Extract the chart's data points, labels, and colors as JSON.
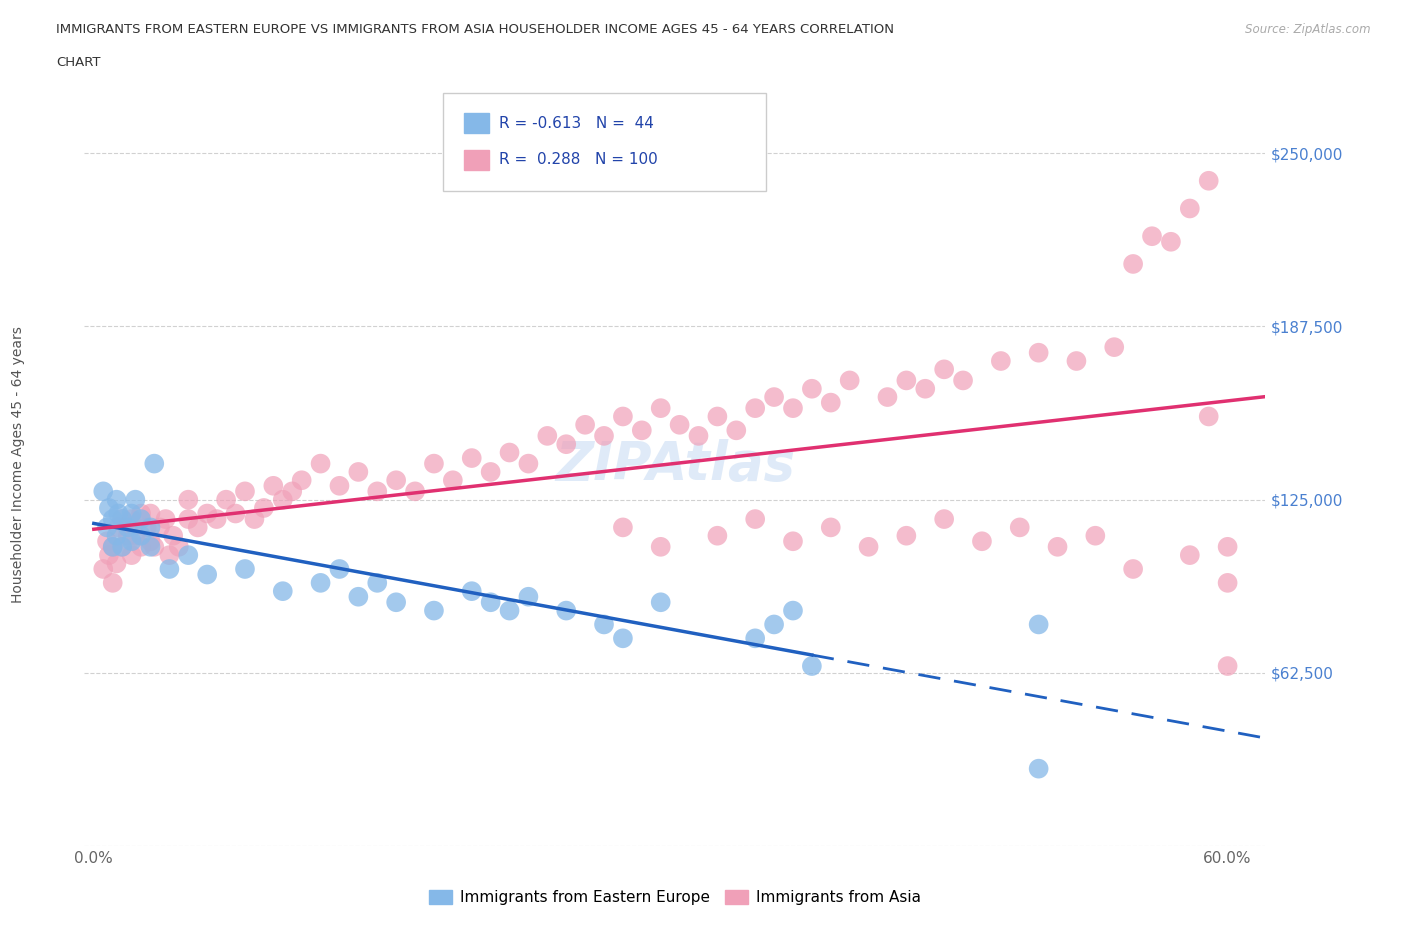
{
  "title_line1": "IMMIGRANTS FROM EASTERN EUROPE VS IMMIGRANTS FROM ASIA HOUSEHOLDER INCOME AGES 45 - 64 YEARS CORRELATION",
  "title_line2": "CHART",
  "source_text": "Source: ZipAtlas.com",
  "ylabel": "Householder Income Ages 45 - 64 years",
  "xlim": [
    -0.005,
    0.62
  ],
  "ylim": [
    0,
    275000
  ],
  "yticks": [
    0,
    62500,
    125000,
    187500,
    250000
  ],
  "xticks": [
    0.0,
    0.1,
    0.2,
    0.3,
    0.4,
    0.5,
    0.6
  ],
  "blue_color": "#85b8e8",
  "pink_color": "#f0a0b8",
  "blue_line_color": "#2060c0",
  "pink_line_color": "#e03070",
  "legend_R1": "-0.613",
  "legend_N1": "44",
  "legend_R2": "0.288",
  "legend_N2": "100",
  "legend_label1": "Immigrants from Eastern Europe",
  "legend_label2": "Immigrants from Asia",
  "blue_scatter_x": [
    0.005,
    0.007,
    0.008,
    0.01,
    0.01,
    0.012,
    0.012,
    0.013,
    0.015,
    0.015,
    0.018,
    0.02,
    0.02,
    0.022,
    0.025,
    0.025,
    0.03,
    0.03,
    0.032,
    0.04,
    0.05,
    0.06,
    0.08,
    0.1,
    0.12,
    0.13,
    0.14,
    0.15,
    0.16,
    0.18,
    0.2,
    0.21,
    0.22,
    0.23,
    0.25,
    0.27,
    0.28,
    0.3,
    0.35,
    0.36,
    0.37,
    0.38,
    0.5,
    0.5
  ],
  "blue_scatter_y": [
    128000,
    115000,
    122000,
    108000,
    118000,
    112000,
    125000,
    120000,
    108000,
    118000,
    115000,
    110000,
    120000,
    125000,
    112000,
    118000,
    115000,
    108000,
    138000,
    100000,
    105000,
    98000,
    100000,
    92000,
    95000,
    100000,
    90000,
    95000,
    88000,
    85000,
    92000,
    88000,
    85000,
    90000,
    85000,
    80000,
    75000,
    88000,
    75000,
    80000,
    85000,
    65000,
    28000,
    80000
  ],
  "pink_scatter_x": [
    0.005,
    0.007,
    0.008,
    0.01,
    0.01,
    0.012,
    0.013,
    0.015,
    0.015,
    0.018,
    0.02,
    0.02,
    0.022,
    0.025,
    0.025,
    0.028,
    0.03,
    0.03,
    0.032,
    0.035,
    0.038,
    0.04,
    0.042,
    0.045,
    0.05,
    0.05,
    0.055,
    0.06,
    0.065,
    0.07,
    0.075,
    0.08,
    0.085,
    0.09,
    0.095,
    0.1,
    0.105,
    0.11,
    0.12,
    0.13,
    0.14,
    0.15,
    0.16,
    0.17,
    0.18,
    0.19,
    0.2,
    0.21,
    0.22,
    0.23,
    0.24,
    0.25,
    0.26,
    0.27,
    0.28,
    0.29,
    0.3,
    0.31,
    0.32,
    0.33,
    0.34,
    0.35,
    0.36,
    0.37,
    0.38,
    0.39,
    0.4,
    0.42,
    0.43,
    0.44,
    0.45,
    0.46,
    0.48,
    0.5,
    0.52,
    0.54,
    0.55,
    0.56,
    0.57,
    0.58,
    0.59,
    0.6,
    0.59,
    0.6,
    0.6,
    0.58,
    0.55,
    0.53,
    0.51,
    0.49,
    0.47,
    0.45,
    0.43,
    0.41,
    0.39,
    0.37,
    0.35,
    0.33,
    0.3,
    0.28
  ],
  "pink_scatter_y": [
    100000,
    110000,
    105000,
    95000,
    108000,
    102000,
    115000,
    108000,
    118000,
    112000,
    105000,
    118000,
    112000,
    108000,
    120000,
    115000,
    110000,
    120000,
    108000,
    115000,
    118000,
    105000,
    112000,
    108000,
    118000,
    125000,
    115000,
    120000,
    118000,
    125000,
    120000,
    128000,
    118000,
    122000,
    130000,
    125000,
    128000,
    132000,
    138000,
    130000,
    135000,
    128000,
    132000,
    128000,
    138000,
    132000,
    140000,
    135000,
    142000,
    138000,
    148000,
    145000,
    152000,
    148000,
    155000,
    150000,
    158000,
    152000,
    148000,
    155000,
    150000,
    158000,
    162000,
    158000,
    165000,
    160000,
    168000,
    162000,
    168000,
    165000,
    172000,
    168000,
    175000,
    178000,
    175000,
    180000,
    210000,
    220000,
    218000,
    230000,
    240000,
    65000,
    155000,
    108000,
    95000,
    105000,
    100000,
    112000,
    108000,
    115000,
    110000,
    118000,
    112000,
    108000,
    115000,
    110000,
    118000,
    112000,
    108000,
    115000
  ]
}
